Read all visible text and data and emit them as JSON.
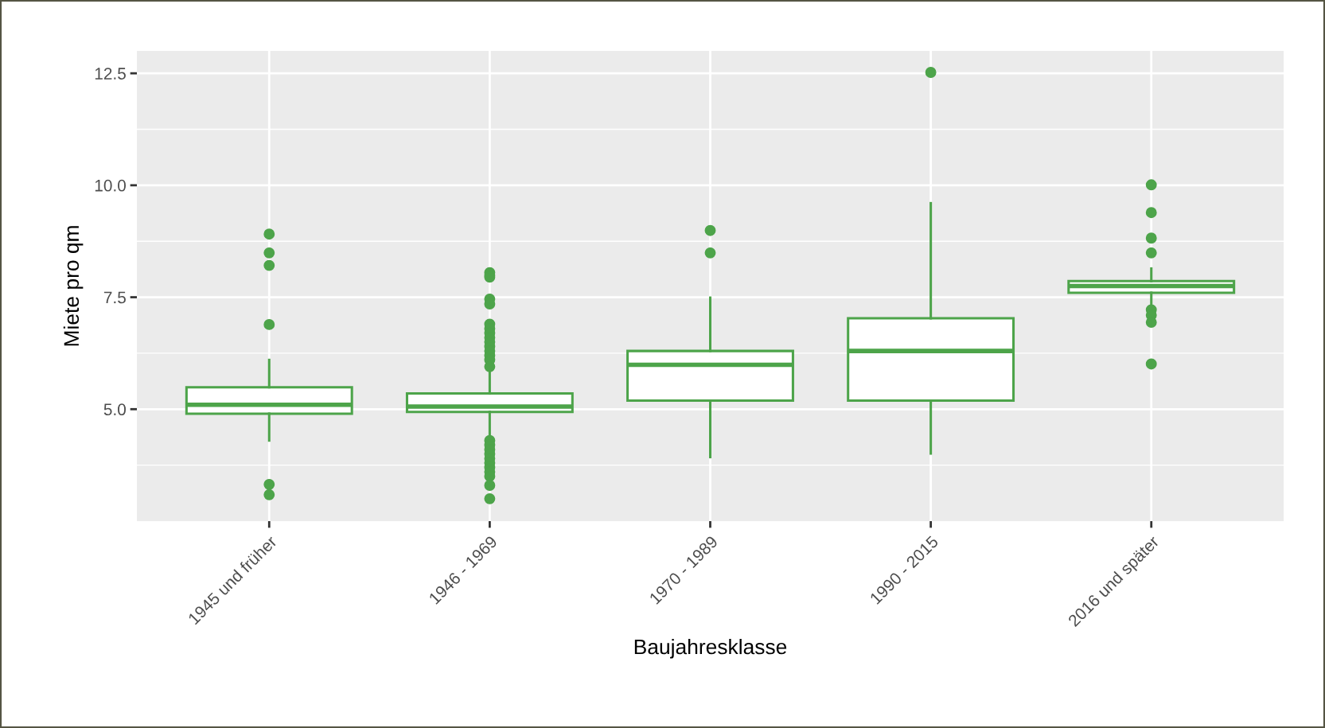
{
  "chart_data": {
    "type": "box",
    "xlabel": "Baujahresklasse",
    "ylabel": "Miete pro qm",
    "categories": [
      "1945 und früher",
      "1946 - 1969",
      "1970 - 1989",
      "1990 - 2015",
      "2016 und später"
    ],
    "series": [
      {
        "color": "#4da44a",
        "boxes": [
          {
            "low": 4.3,
            "q1": 4.9,
            "median": 5.1,
            "q3": 5.49,
            "high": 6.1,
            "outliers": [
              8.91,
              8.49,
              8.21,
              6.89,
              3.32,
              3.09
            ]
          },
          {
            "low": 4.38,
            "q1": 4.94,
            "median": 5.06,
            "q3": 5.35,
            "high": 5.85,
            "outliers": [
              8.05,
              7.99,
              7.95,
              7.46,
              7.35,
              6.9,
              6.8,
              6.7,
              6.6,
              6.5,
              6.4,
              6.3,
              6.2,
              6.1,
              5.95,
              4.3,
              4.2,
              4.1,
              4.0,
              3.9,
              3.8,
              3.7,
              3.6,
              3.5,
              3.3,
              3.0
            ]
          },
          {
            "low": 3.93,
            "q1": 5.19,
            "median": 5.99,
            "q3": 6.3,
            "high": 7.49,
            "outliers": [
              8.99,
              8.49
            ]
          },
          {
            "low": 4.01,
            "q1": 5.19,
            "median": 6.3,
            "q3": 7.03,
            "high": 9.6,
            "outliers": [
              12.52
            ]
          },
          {
            "low": 7.29,
            "q1": 7.6,
            "median": 7.75,
            "q3": 7.86,
            "high": 8.14,
            "outliers": [
              10.01,
              9.39,
              8.82,
              8.49,
              7.22,
              7.1,
              6.94,
              6.01
            ]
          }
        ]
      }
    ],
    "ylim": [
      2.5,
      13.0
    ],
    "yticks": [
      {
        "value": 5.0,
        "label": "5.0"
      },
      {
        "value": 7.5,
        "label": "7.5"
      },
      {
        "value": 10.0,
        "label": "10.0"
      },
      {
        "value": 12.5,
        "label": "12.5"
      }
    ],
    "grid": true
  }
}
